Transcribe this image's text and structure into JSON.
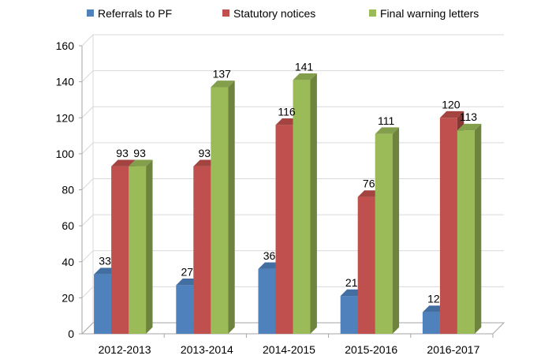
{
  "chart_data": {
    "type": "bar",
    "categories": [
      "2012-2013",
      "2013-2014",
      "2014-2015",
      "2015-2016",
      "2016-2017"
    ],
    "series": [
      {
        "name": "Referrals to PF",
        "values": [
          33,
          27,
          36,
          21,
          12
        ],
        "color": "#4f81bd"
      },
      {
        "name": "Statutory notices",
        "values": [
          93,
          93,
          116,
          76,
          120
        ],
        "color": "#c0504d"
      },
      {
        "name": "Final warning letters",
        "values": [
          93,
          137,
          141,
          111,
          113
        ],
        "color": "#9bbb59"
      }
    ],
    "ylim": [
      0,
      160
    ],
    "yticks": [
      0,
      20,
      40,
      60,
      80,
      100,
      120,
      140,
      160
    ],
    "grid": true,
    "legend": "top",
    "data_labels": true,
    "style": "3d"
  }
}
